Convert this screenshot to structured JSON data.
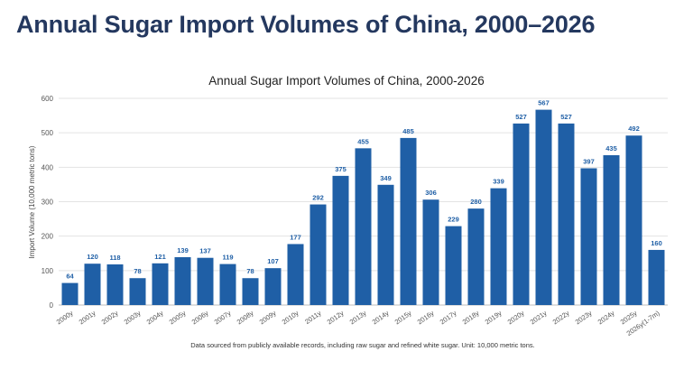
{
  "page": {
    "heading": "Annual Sugar Import Volumes of China, 2000–2026"
  },
  "chart_data": {
    "type": "bar",
    "title": "Annual Sugar Import Volumes of China, 2000-2026",
    "ylabel": "Import Volume (10,000 metric tons)",
    "xlabel": "",
    "ylim": [
      0,
      600
    ],
    "yticks": [
      0,
      100,
      200,
      300,
      400,
      500,
      600
    ],
    "grid": true,
    "bar_color": "#1f5fa6",
    "label_color": "#1f5fa6",
    "categories": [
      "2000y",
      "2001y",
      "2002y",
      "2003y",
      "2004y",
      "2005y",
      "2006y",
      "2007y",
      "2008y",
      "2009y",
      "2010y",
      "2011y",
      "2012y",
      "2013y",
      "2014y",
      "2015y",
      "2016y",
      "2017y",
      "2018y",
      "2019y",
      "2020y",
      "2021y",
      "2022y",
      "2023y",
      "2024y",
      "2025y",
      "2026y(1-7m)"
    ],
    "values": [
      64,
      120,
      118,
      78,
      121,
      139,
      137,
      119,
      78,
      107,
      177,
      292,
      375,
      455,
      349,
      485,
      306,
      229,
      280,
      339,
      527,
      567,
      527,
      397,
      435,
      492,
      160
    ],
    "footnote": "Data sourced from publicly available records, including raw sugar and refined white sugar. Unit: 10,000 metric tons."
  }
}
